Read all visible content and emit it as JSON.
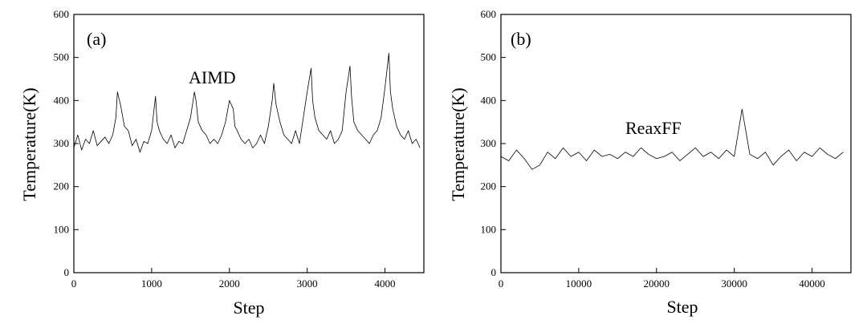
{
  "chart_data": [
    {
      "type": "line",
      "panel_label": "(a)",
      "series_label": "AIMD",
      "xlabel": "Step",
      "ylabel": "Temperature(K)",
      "xlim": [
        0,
        4500
      ],
      "ylim": [
        0,
        600
      ],
      "x_ticks": [
        0,
        1000,
        2000,
        3000,
        4000
      ],
      "x_tick_labels": [
        "0",
        "1000",
        "2000",
        "3000",
        "4000"
      ],
      "y_ticks": [
        0,
        100,
        200,
        300,
        400,
        500,
        600
      ],
      "y_tick_labels": [
        "0",
        "100",
        "200",
        "300",
        "400",
        "500",
        "600"
      ],
      "grid": false,
      "series": [
        {
          "x": [
            0,
            50,
            100,
            150,
            200,
            250,
            300,
            350,
            400,
            450,
            500,
            540,
            560,
            600,
            650,
            700,
            750,
            800,
            850,
            900,
            950,
            1000,
            1050,
            1070,
            1100,
            1150,
            1200,
            1250,
            1300,
            1350,
            1400,
            1450,
            1500,
            1550,
            1570,
            1600,
            1650,
            1700,
            1750,
            1800,
            1850,
            1900,
            1950,
            2000,
            2050,
            2070,
            2100,
            2150,
            2200,
            2250,
            2300,
            2350,
            2400,
            2450,
            2500,
            2550,
            2570,
            2600,
            2650,
            2700,
            2750,
            2800,
            2850,
            2900,
            2950,
            3000,
            3050,
            3070,
            3100,
            3150,
            3200,
            3250,
            3300,
            3350,
            3400,
            3450,
            3500,
            3550,
            3570,
            3600,
            3650,
            3700,
            3750,
            3800,
            3850,
            3900,
            3950,
            4000,
            4050,
            4070,
            4100,
            4150,
            4200,
            4250,
            4300,
            4350,
            4400,
            4450
          ],
          "y": [
            290,
            320,
            285,
            310,
            300,
            330,
            295,
            305,
            315,
            300,
            320,
            360,
            420,
            390,
            340,
            330,
            295,
            310,
            280,
            305,
            300,
            330,
            410,
            350,
            330,
            310,
            300,
            320,
            290,
            305,
            300,
            330,
            360,
            420,
            400,
            350,
            330,
            320,
            300,
            310,
            300,
            320,
            350,
            400,
            380,
            340,
            330,
            310,
            300,
            310,
            290,
            300,
            320,
            300,
            340,
            400,
            440,
            390,
            350,
            320,
            310,
            300,
            330,
            300,
            360,
            420,
            475,
            400,
            360,
            330,
            320,
            310,
            330,
            300,
            310,
            330,
            420,
            480,
            410,
            350,
            330,
            320,
            310,
            300,
            320,
            330,
            360,
            430,
            510,
            420,
            380,
            340,
            320,
            310,
            330,
            300,
            310,
            290
          ]
        }
      ]
    },
    {
      "type": "line",
      "panel_label": "(b)",
      "series_label": "ReaxFF",
      "xlabel": "Step",
      "ylabel": "Temperature(K)",
      "xlim": [
        0,
        45000
      ],
      "ylim": [
        0,
        600
      ],
      "x_ticks": [
        0,
        10000,
        20000,
        30000,
        40000
      ],
      "x_tick_labels": [
        "0",
        "10000",
        "20000",
        "30000",
        "40000"
      ],
      "y_ticks": [
        0,
        100,
        200,
        300,
        400,
        500,
        600
      ],
      "y_tick_labels": [
        "0",
        "100",
        "200",
        "300",
        "400",
        "500",
        "600"
      ],
      "grid": false,
      "series": [
        {
          "x": [
            0,
            1000,
            2000,
            3000,
            4000,
            5000,
            6000,
            7000,
            8000,
            9000,
            10000,
            11000,
            12000,
            13000,
            14000,
            15000,
            16000,
            17000,
            18000,
            19000,
            20000,
            21000,
            22000,
            23000,
            24000,
            25000,
            26000,
            27000,
            28000,
            29000,
            30000,
            31000,
            32000,
            33000,
            34000,
            35000,
            36000,
            37000,
            38000,
            39000,
            40000,
            41000,
            42000,
            43000,
            44000
          ],
          "y": [
            270,
            260,
            285,
            265,
            240,
            250,
            280,
            265,
            290,
            270,
            280,
            260,
            285,
            270,
            275,
            265,
            280,
            270,
            290,
            275,
            265,
            270,
            280,
            260,
            275,
            290,
            270,
            280,
            265,
            285,
            270,
            380,
            275,
            265,
            280,
            250,
            270,
            285,
            260,
            280,
            270,
            290,
            275,
            265,
            280
          ]
        }
      ]
    }
  ]
}
